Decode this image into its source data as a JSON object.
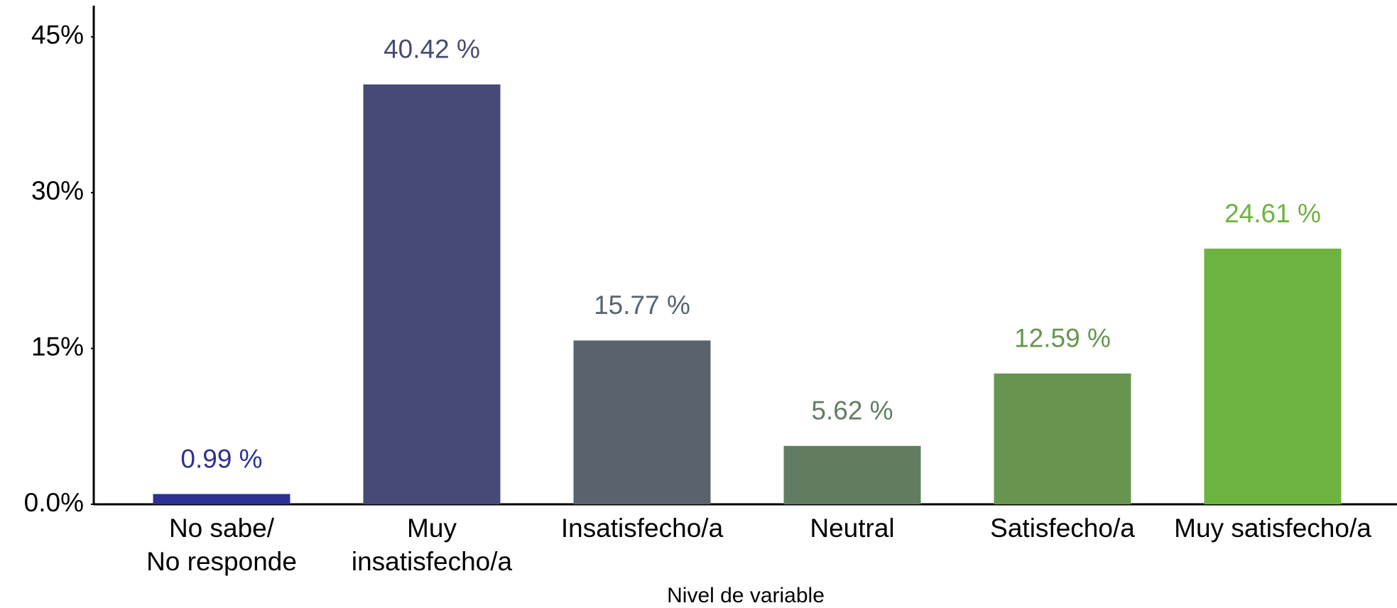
{
  "chart_data": {
    "type": "bar",
    "x_label": "Nivel de variable",
    "categories": [
      "No sabe/\nNo responde",
      "Muy\ninsatisfecho/a",
      "Insatisfecho/a",
      "Neutral",
      "Satisfecho/a",
      "Muy satisfecho/a"
    ],
    "values": [
      0.99,
      40.42,
      15.77,
      5.62,
      12.59,
      24.61
    ],
    "value_labels": [
      "0.99 %",
      "40.42 %",
      "15.77 %",
      "5.62 %",
      "12.59 %",
      "24.61 %"
    ],
    "colors": [
      "#2e3190",
      "#474a76",
      "#58636e",
      "#627c62",
      "#67954f",
      "#6db33f"
    ],
    "ylim": [
      0,
      48
    ],
    "yticks": [
      {
        "value": 0,
        "label": "0.0%"
      },
      {
        "value": 15,
        "label": "15%"
      },
      {
        "value": 30,
        "label": "30%"
      },
      {
        "value": 45,
        "label": "45%"
      }
    ],
    "grid": false
  }
}
